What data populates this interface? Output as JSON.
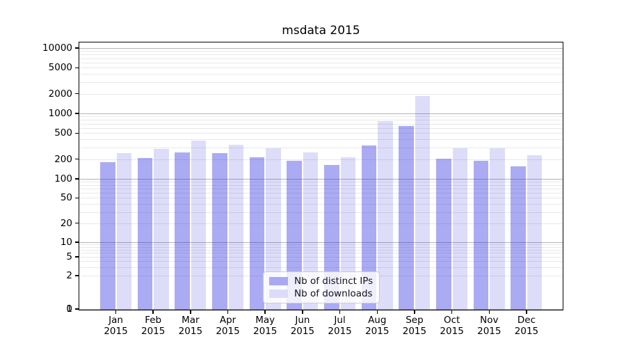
{
  "title": "msdata 2015",
  "axes": {
    "y_tick_labels": [
      "0",
      "1",
      "2",
      "5",
      "10",
      "20",
      "50",
      "100",
      "200",
      "500",
      "1000",
      "2000",
      "5000",
      "10000"
    ],
    "x_tick_months": [
      "Jan",
      "Feb",
      "Mar",
      "Apr",
      "May",
      "Jun",
      "Jul",
      "Aug",
      "Sep",
      "Oct",
      "Nov",
      "Dec"
    ],
    "x_tick_year": "2015"
  },
  "legend": {
    "items": [
      {
        "label": "Nb of distinct IPs",
        "swatch": "#a9a9f3"
      },
      {
        "label": "Nb of downloads",
        "swatch": "#dcdcfa"
      }
    ]
  },
  "colors": {
    "series_ip_fill": "rgba(45,45,225,0.40)",
    "series_dl_fill": "rgba(45,45,225,0.16)",
    "grid_major": "#b3b3b3",
    "grid_minor": "#e8e8e8",
    "axis": "#000000"
  },
  "chart_data": {
    "type": "bar",
    "title": "msdata 2015",
    "categories": [
      "Jan 2015",
      "Feb 2015",
      "Mar 2015",
      "Apr 2015",
      "May 2015",
      "Jun 2015",
      "Jul 2015",
      "Aug 2015",
      "Sep 2015",
      "Oct 2015",
      "Nov 2015",
      "Dec 2015"
    ],
    "series": [
      {
        "name": "Nb of distinct IPs",
        "values": [
          180,
          210,
          254,
          248,
          214,
          189,
          162,
          327,
          640,
          202,
          189,
          155
        ]
      },
      {
        "name": "Nb of downloads",
        "values": [
          248,
          287,
          382,
          330,
          296,
          252,
          214,
          765,
          1830,
          292,
          292,
          228
        ]
      }
    ],
    "yscale": "symlog",
    "y_ticks": [
      0,
      1,
      2,
      5,
      10,
      20,
      50,
      100,
      200,
      500,
      1000,
      2000,
      5000,
      10000
    ],
    "ylim": [
      0,
      12000
    ],
    "grid": "horizontal, major and minor log lines",
    "legend_position": "lower center inside plot"
  }
}
